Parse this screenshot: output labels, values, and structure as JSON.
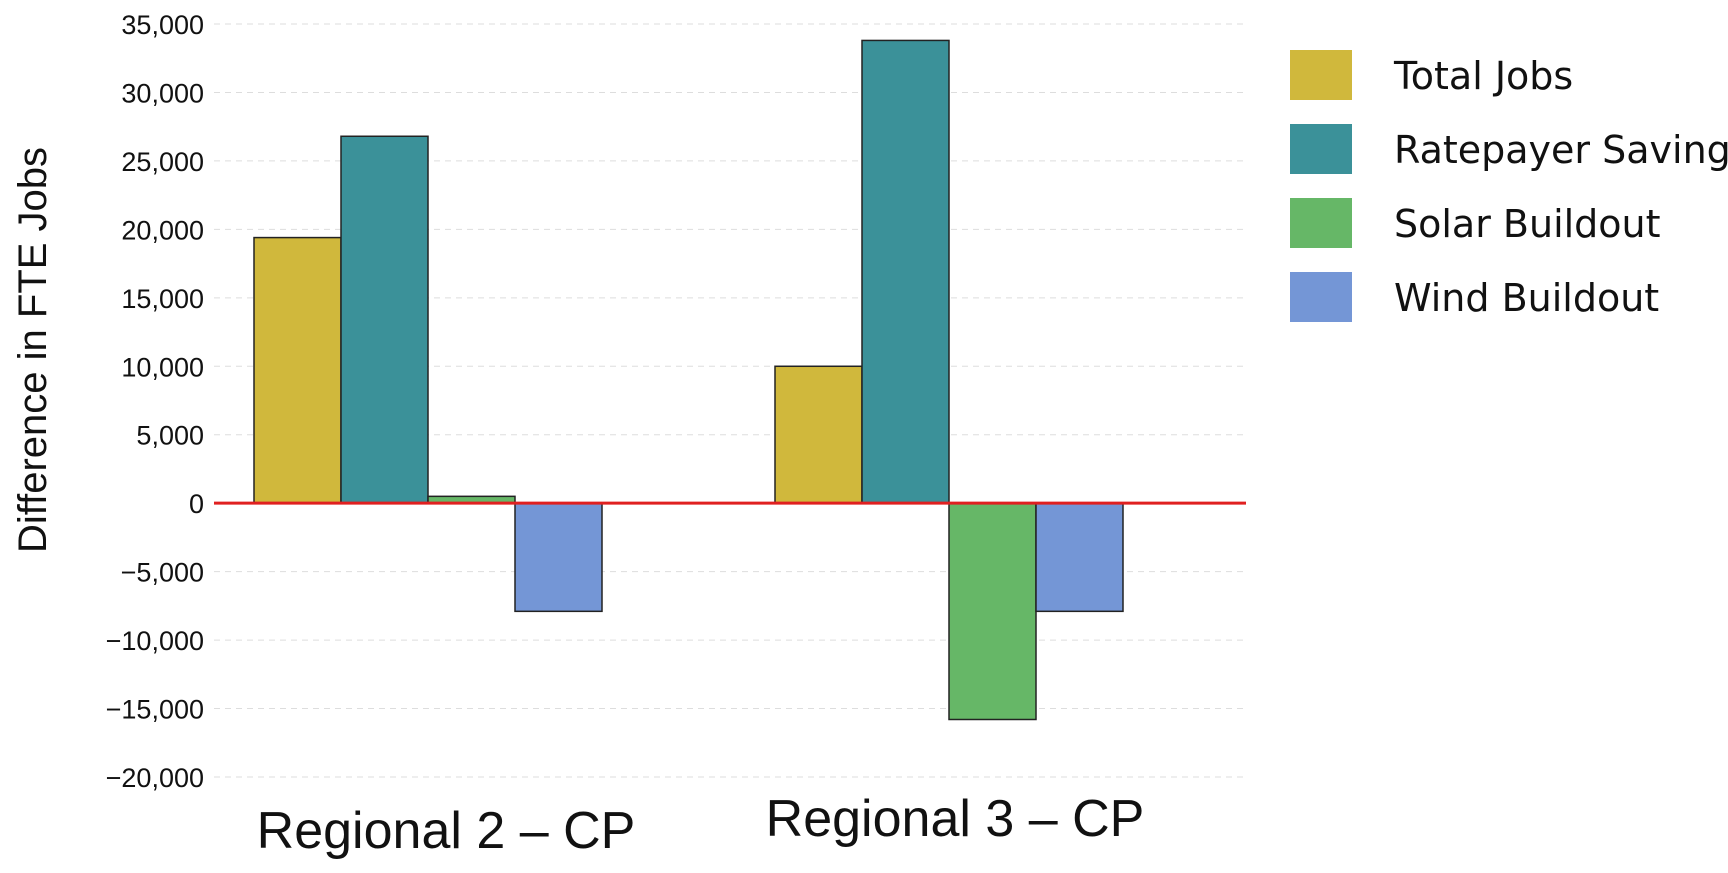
{
  "chart_data": {
    "type": "bar",
    "title": "",
    "xlabel": "",
    "ylabel": "Difference in FTE Jobs",
    "categories": [
      "Regional 2 – CP",
      "Regional 3 – CP"
    ],
    "series": [
      {
        "name": "Total Jobs",
        "color": "#d0b83c",
        "values": [
          19400,
          10000
        ]
      },
      {
        "name": "Ratepayer Savings",
        "color": "#3b9199",
        "values": [
          26800,
          33800
        ]
      },
      {
        "name": "Solar Buildout",
        "color": "#66b767",
        "values": [
          500,
          -15800
        ]
      },
      {
        "name": "Wind Buildout",
        "color": "#7496d6",
        "values": [
          -7900,
          -7900
        ]
      }
    ],
    "ylim": [
      -20000,
      35000
    ],
    "yticks": [
      35000,
      30000,
      25000,
      20000,
      15000,
      10000,
      5000,
      0,
      -5000,
      -10000,
      -15000,
      -20000
    ],
    "ytick_labels": [
      "35,000",
      "30,000",
      "25,000",
      "20,000",
      "15,000",
      "10,000",
      "5,000",
      "0",
      "−5,000",
      "−10,000",
      "−15,000",
      "−20,000"
    ],
    "grid": true,
    "zero_line_color": "#e02020",
    "legend_position": "right"
  }
}
